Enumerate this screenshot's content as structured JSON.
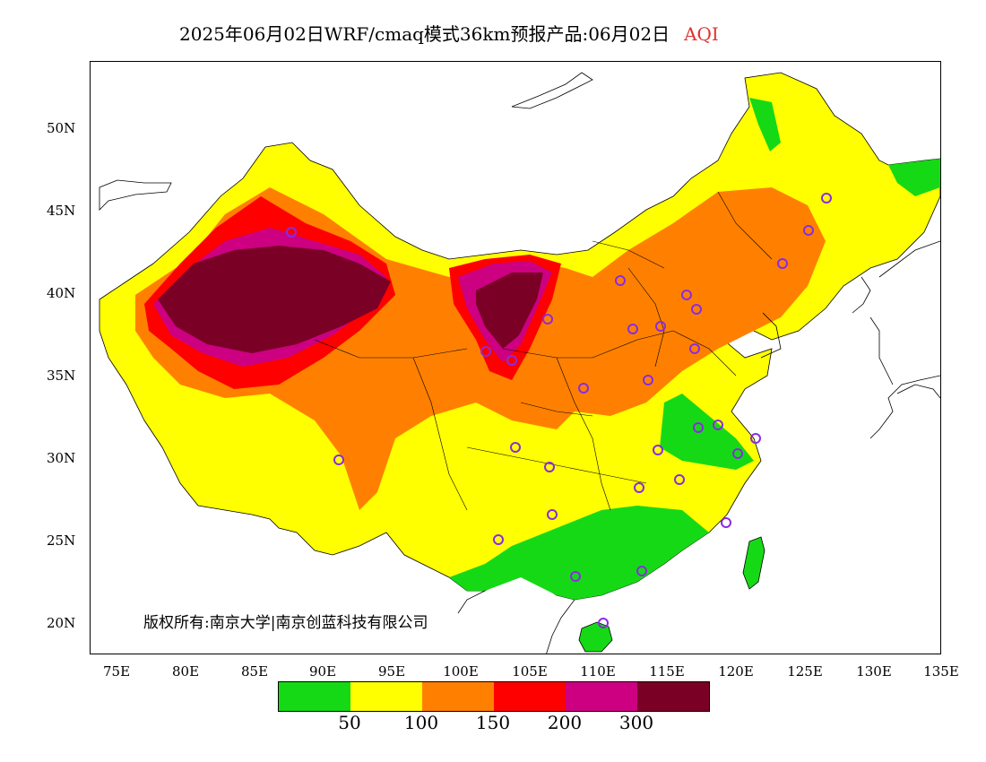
{
  "title": {
    "main": "2025年06月02日WRF/cmaq模式36km预报产品:06月02日",
    "variable": "AQI"
  },
  "map": {
    "lat_labels": [
      "50N",
      "45N",
      "40N",
      "35N",
      "30N",
      "25N",
      "20N"
    ],
    "lon_labels": [
      "75E",
      "80E",
      "85E",
      "90E",
      "95E",
      "100E",
      "105E",
      "110E",
      "115E",
      "120E",
      "125E",
      "130E",
      "135E"
    ],
    "copyright": "版权所有:南京大学|南京创蓝科技有限公司"
  },
  "legend": {
    "colors": [
      "#16d916",
      "#ffff00",
      "#ff8000",
      "#ff0000",
      "#cc0080",
      "#7a0026"
    ],
    "labels": [
      "50",
      "100",
      "150",
      "200",
      "300"
    ]
  },
  "colors": {
    "aqi_title": "#e0322e",
    "site_marker": "#8a2be2"
  }
}
